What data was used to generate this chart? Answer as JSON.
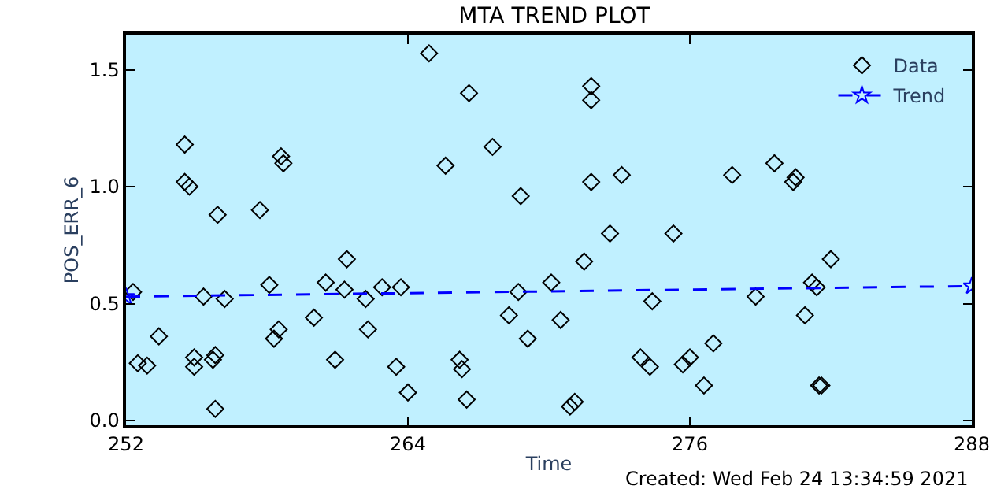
{
  "chart_data": {
    "type": "scatter",
    "title": "MTA TREND PLOT",
    "xlabel": "Time",
    "ylabel": "POS_ERR_6",
    "xlim": [
      252,
      288
    ],
    "xticks": [
      252,
      264,
      276,
      288
    ],
    "ylim": [
      -0.02,
      1.65
    ],
    "yticks": [
      {
        "value": 0,
        "label": "0.0"
      },
      0.5,
      {
        "value": 1,
        "label": "1.0"
      },
      1.5
    ],
    "grid": false,
    "legend": "top right",
    "annotations": [
      "Created: Wed Feb 24 13:34:59 2021"
    ],
    "series": [
      {
        "name": "Data",
        "color": "#000000",
        "marker": "diamond",
        "x": [
          252.3,
          252.5,
          252.9,
          253.4,
          254.5,
          254.5,
          254.7,
          254.9,
          254.9,
          255.3,
          255.7,
          255.8,
          255.9,
          255.8,
          256.2,
          257.7,
          258.1,
          258.3,
          258.5,
          258.6,
          258.7,
          260.0,
          260.5,
          260.9,
          261.3,
          261.4,
          262.2,
          262.3,
          262.9,
          263.5,
          263.7,
          264.0,
          264.9,
          265.6,
          266.2,
          266.3,
          266.5,
          266.6,
          267.6,
          268.3,
          268.7,
          268.8,
          269.1,
          270.1,
          270.5,
          270.9,
          271.1,
          271.5,
          271.8,
          271.8,
          271.8,
          272.6,
          273.1,
          273.9,
          274.3,
          274.4,
          275.3,
          275.7,
          276.0,
          276.6,
          277.0,
          277.8,
          278.8,
          279.6,
          280.5,
          280.4,
          280.9,
          281.2,
          281.4,
          281.6,
          281.5,
          282.0
        ],
        "values": [
          0.55,
          0.245,
          0.235,
          0.36,
          1.18,
          1.02,
          1.0,
          0.27,
          0.23,
          0.53,
          0.26,
          0.28,
          0.88,
          0.05,
          0.52,
          0.9,
          0.58,
          0.35,
          0.39,
          1.13,
          1.1,
          0.44,
          0.59,
          0.26,
          0.56,
          0.69,
          0.52,
          0.39,
          0.57,
          0.23,
          0.57,
          0.12,
          1.57,
          1.09,
          0.26,
          0.22,
          0.09,
          1.4,
          1.17,
          0.45,
          0.55,
          0.96,
          0.35,
          0.59,
          0.43,
          0.06,
          0.08,
          0.68,
          1.43,
          1.37,
          1.02,
          0.8,
          1.05,
          0.27,
          0.23,
          0.51,
          0.8,
          0.24,
          0.27,
          0.15,
          0.33,
          1.05,
          0.53,
          1.1,
          1.04,
          1.02,
          0.45,
          0.59,
          0.57,
          0.15,
          0.15,
          0.69
        ]
      },
      {
        "name": "Trend",
        "color": "#0000ff",
        "type": "line",
        "marker": "star",
        "line_style": "dashed",
        "x": [
          252,
          288
        ],
        "values": [
          0.53,
          0.575
        ]
      }
    ]
  }
}
